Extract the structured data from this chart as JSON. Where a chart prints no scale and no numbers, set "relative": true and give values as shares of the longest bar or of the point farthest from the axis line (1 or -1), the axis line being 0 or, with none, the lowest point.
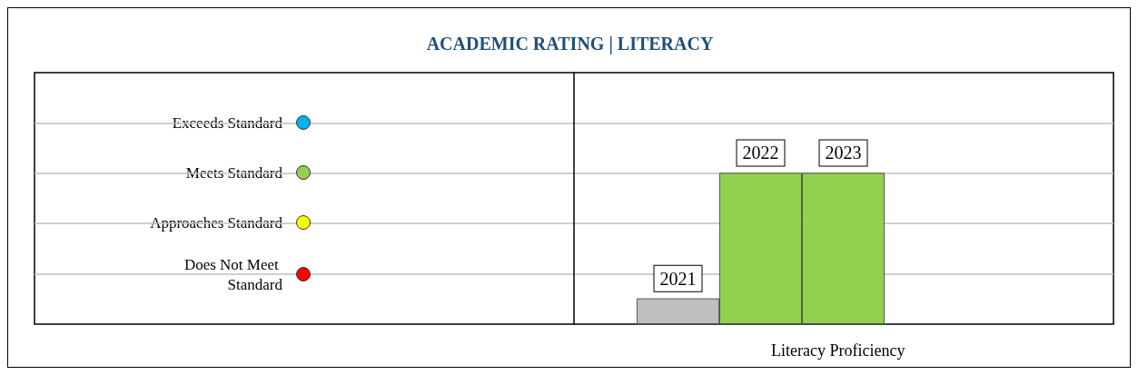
{
  "chart_data": {
    "type": "bar",
    "title": "ACADEMIC RATING | LITERACY",
    "xlabel": "Literacy Proficiency",
    "categories": [
      null,
      null,
      null
    ],
    "values": [
      0.17,
      1,
      1
    ],
    "colors": [
      "#bfbfbf",
      "#92d050",
      "#92d050"
    ],
    "relative": true,
    "ref_lines": [
      {
        "axis": "y",
        "value": 1.33,
        "label": "Exceeds Standard",
        "color": "#bfbfbf"
      },
      {
        "axis": "y",
        "value": 1,
        "label": "Meets Standard",
        "color": "#bfbfbf"
      },
      {
        "axis": "y",
        "value": 0.67,
        "label": "Approaches Standard",
        "color": "#bfbfbf"
      },
      {
        "axis": "y",
        "value": 0.33,
        "label": "Does Not Meet Standard",
        "color": "#bfbfbf"
      }
    ],
    "annotations": [
      {
        "text": "2021",
        "y": 0.17
      },
      {
        "text": "2022",
        "y": 1
      },
      {
        "text": "2023",
        "y": 1
      }
    ]
  }
}
